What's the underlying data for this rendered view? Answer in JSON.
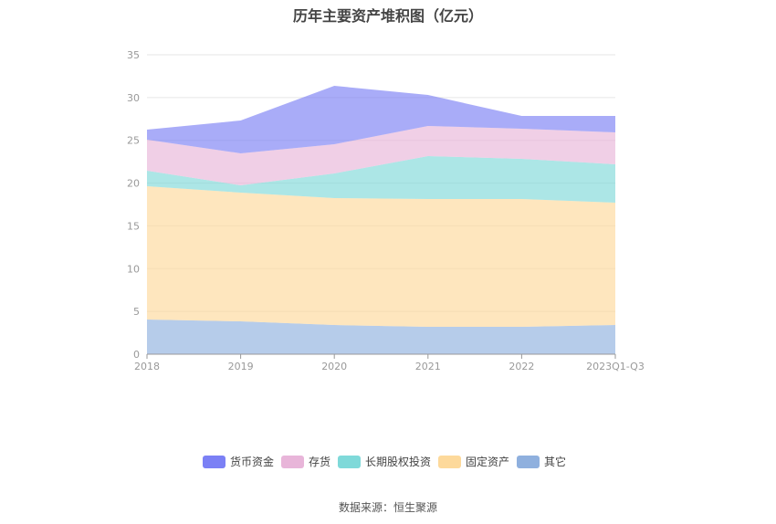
{
  "chart_data": {
    "type": "area",
    "stacked": true,
    "title": "历年主要资产堆积图（亿元）",
    "source": "数据来源：恒生聚源",
    "categories": [
      "2018",
      "2019",
      "2020",
      "2021",
      "2022",
      "2023Q1-Q3"
    ],
    "ylim": [
      0,
      35
    ],
    "yticks": [
      0,
      5,
      10,
      15,
      20,
      25,
      30,
      35
    ],
    "grid": true,
    "legend_position": "bottom",
    "series": [
      {
        "name": "其它",
        "color": "#8fb0de",
        "values": [
          4.05,
          3.84,
          3.41,
          3.2,
          3.2,
          3.41
        ]
      },
      {
        "name": "固定资产",
        "color": "#fdd99b",
        "values": [
          15.58,
          15.05,
          14.84,
          14.94,
          14.94,
          14.3
        ]
      },
      {
        "name": "长期股权投资",
        "color": "#7fd9d9",
        "values": [
          1.82,
          0.85,
          2.88,
          5.02,
          4.7,
          4.49
        ]
      },
      {
        "name": "存货",
        "color": "#e8b5d9",
        "values": [
          3.63,
          3.74,
          3.41,
          3.52,
          3.52,
          3.73
        ]
      },
      {
        "name": "货币资金",
        "color": "#7b80f5",
        "values": [
          1.17,
          3.84,
          6.83,
          3.62,
          1.49,
          1.92
        ]
      }
    ],
    "legend_order": [
      "货币资金",
      "存货",
      "长期股权投资",
      "固定资产",
      "其它"
    ]
  }
}
